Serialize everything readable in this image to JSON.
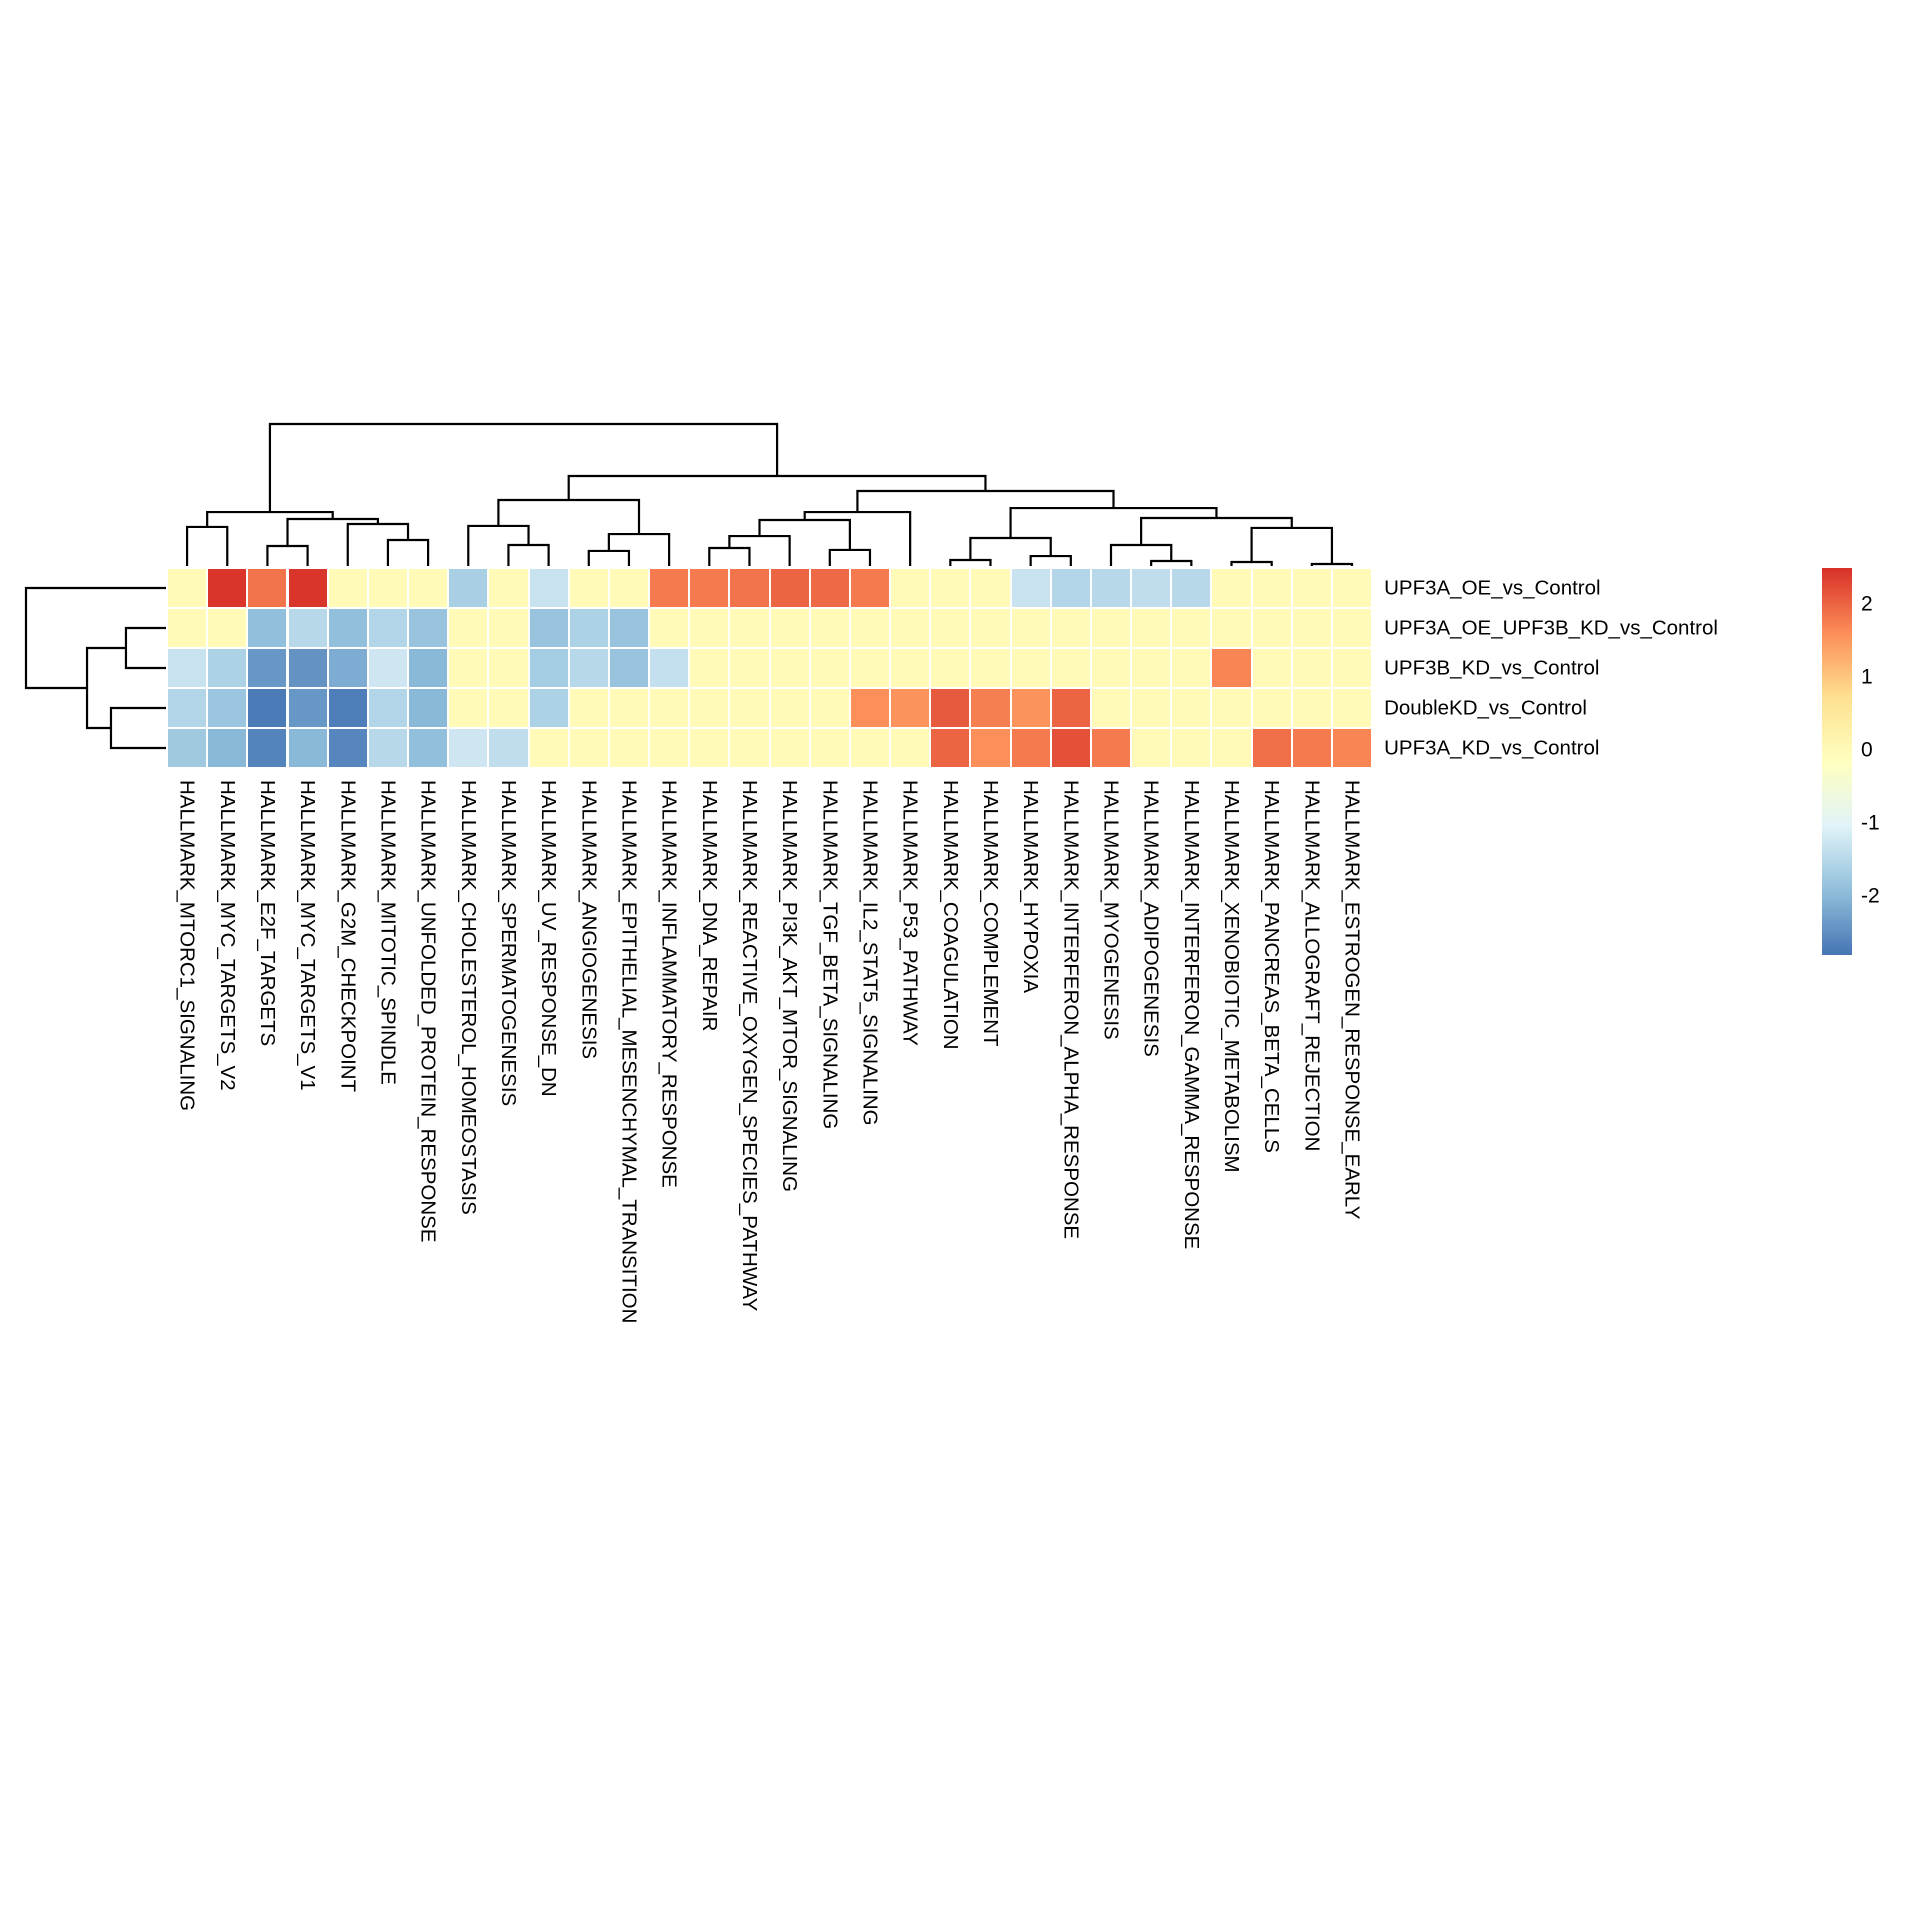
{
  "figure": {
    "background": "#ffffff",
    "description": "Clustered heatmap of GSEA hallmark pathway scores (NES) across UPF3 perturbation comparisons, with row and column dendrograms and a color key"
  },
  "chart_data": {
    "type": "heatmap",
    "title": "",
    "rows": [
      "UPF3A_OE_vs_Control",
      "UPF3A_OE_UPF3B_KD_vs_Control",
      "UPF3B_KD_vs_Control",
      "DoubleKD_vs_Control",
      "UPF3A_KD_vs_Control"
    ],
    "columns": [
      "HALLMARK_MTORC1_SIGNALING",
      "HALLMARK_MYC_TARGETS_V2",
      "HALLMARK_E2F_TARGETS",
      "HALLMARK_MYC_TARGETS_V1",
      "HALLMARK_G2M_CHECKPOINT",
      "HALLMARK_MITOTIC_SPINDLE",
      "HALLMARK_UNFOLDED_PROTEIN_RESPONSE",
      "HALLMARK_CHOLESTEROL_HOMEOSTASIS",
      "HALLMARK_SPERMATOGENESIS",
      "HALLMARK_UV_RESPONSE_DN",
      "HALLMARK_ANGIOGENESIS",
      "HALLMARK_EPITHELIAL_MESENCHYMAL_TRANSITION",
      "HALLMARK_INFLAMMATORY_RESPONSE",
      "HALLMARK_DNA_REPAIR",
      "HALLMARK_REACTIVE_OXYGEN_SPECIES_PATHWAY",
      "HALLMARK_PI3K_AKT_MTOR_SIGNALING",
      "HALLMARK_TGF_BETA_SIGNALING",
      "HALLMARK_IL2_STAT5_SIGNALING",
      "HALLMARK_P53_PATHWAY",
      "HALLMARK_COAGULATION",
      "HALLMARK_COMPLEMENT",
      "HALLMARK_HYPOXIA",
      "HALLMARK_INTERFERON_ALPHA_RESPONSE",
      "HALLMARK_MYOGENESIS",
      "HALLMARK_ADIPOGENESIS",
      "HALLMARK_INTERFERON_GAMMA_RESPONSE",
      "HALLMARK_XENOBIOTIC_METABOLISM",
      "HALLMARK_PANCREAS_BETA_CELLS",
      "HALLMARK_ALLOGRAFT_REJECTION",
      "HALLMARK_ESTROGEN_RESPONSE_EARLY"
    ],
    "values": [
      [
        0,
        2.45,
        1.85,
        2.45,
        0,
        0,
        0,
        -1.65,
        0,
        -1.3,
        0,
        0,
        1.8,
        1.8,
        1.85,
        2.0,
        1.95,
        1.8,
        0,
        0,
        0,
        -1.3,
        -1.55,
        -1.5,
        -1.4,
        -1.5,
        0,
        0,
        0,
        0
      ],
      [
        0,
        0,
        -1.9,
        -1.5,
        -1.9,
        -1.55,
        -1.85,
        0,
        0,
        -1.85,
        -1.6,
        -1.85,
        0,
        0,
        0,
        0,
        0,
        0,
        0,
        0,
        0,
        0,
        0,
        0,
        0,
        0,
        0,
        0,
        0,
        0
      ],
      [
        -1.3,
        -1.6,
        -2.4,
        -2.45,
        -2.15,
        -1.25,
        -2.0,
        0,
        0,
        -1.7,
        -1.5,
        -1.85,
        -1.35,
        0,
        0,
        0,
        0,
        0,
        0,
        0,
        0,
        0,
        0,
        0,
        0,
        0,
        1.7,
        0,
        0,
        0
      ],
      [
        -1.55,
        -1.8,
        -2.73,
        -2.4,
        -2.68,
        -1.55,
        -2.0,
        0,
        0,
        -1.6,
        0,
        0,
        0,
        0,
        0,
        0,
        0,
        1.6,
        1.55,
        2.1,
        1.75,
        1.55,
        2.0,
        0,
        0,
        0,
        0,
        0,
        0,
        0
      ],
      [
        -1.75,
        -2.0,
        -2.62,
        -2.0,
        -2.6,
        -1.5,
        -1.9,
        -1.25,
        -1.4,
        0,
        0,
        0,
        0,
        0,
        0,
        0,
        0,
        0,
        0,
        2.0,
        1.6,
        1.8,
        2.2,
        1.8,
        0,
        0,
        0,
        1.9,
        1.8,
        1.7
      ]
    ],
    "color_scale": {
      "palette_name": "RdYlBu reversed",
      "colors": [
        "#4575b4",
        "#91bfdb",
        "#e0f3f8",
        "#ffffbf",
        "#fee090",
        "#fc8d59",
        "#d73027"
      ],
      "domain": [
        -2.8,
        2.5
      ],
      "legend_ticks": [
        "2",
        "1",
        "0",
        "-1",
        "-2"
      ],
      "legend_tick_values": [
        2,
        1,
        0,
        -1,
        -2
      ],
      "legend_position": "right"
    },
    "grid": {
      "cell_border_color": "#ffffff",
      "show_values": false
    },
    "row_dendrogram": {
      "h": 1.0,
      "children": [
        {
          "leaf": 0
        },
        {
          "h": 0.564,
          "children": [
            {
              "h": 0.286,
              "children": [
                {
                  "leaf": 1
                },
                {
                  "leaf": 2
                }
              ]
            },
            {
              "h": 0.393,
              "children": [
                {
                  "leaf": 3
                },
                {
                  "leaf": 4
                }
              ]
            }
          ]
        }
      ]
    },
    "col_dendrogram": {
      "h": 1.0,
      "children": [
        {
          "h": 0.38,
          "children": [
            {
              "h": 0.275,
              "children": [
                {
                  "leaf": 0
                },
                {
                  "leaf": 1
                }
              ]
            },
            {
              "h": 0.331,
              "children": [
                {
                  "h": 0.141,
                  "children": [
                    {
                      "leaf": 2
                    },
                    {
                      "leaf": 3
                    }
                  ]
                },
                {
                  "h": 0.296,
                  "children": [
                    {
                      "leaf": 4
                    },
                    {
                      "h": 0.183,
                      "children": [
                        {
                          "leaf": 5
                        },
                        {
                          "leaf": 6
                        }
                      ]
                    }
                  ]
                }
              ]
            }
          ]
        },
        {
          "h": 0.634,
          "children": [
            {
              "h": 0.465,
              "children": [
                {
                  "h": 0.282,
                  "children": [
                    {
                      "leaf": 7
                    },
                    {
                      "h": 0.148,
                      "children": [
                        {
                          "leaf": 8
                        },
                        {
                          "leaf": 9
                        }
                      ]
                    }
                  ]
                },
                {
                  "h": 0.225,
                  "children": [
                    {
                      "h": 0.106,
                      "children": [
                        {
                          "leaf": 10
                        },
                        {
                          "leaf": 11
                        }
                      ]
                    },
                    {
                      "leaf": 12
                    }
                  ]
                }
              ]
            },
            {
              "h": 0.528,
              "children": [
                {
                  "h": 0.38,
                  "children": [
                    {
                      "h": 0.324,
                      "children": [
                        {
                          "h": 0.211,
                          "children": [
                            {
                              "h": 0.127,
                              "children": [
                                {
                                  "leaf": 13
                                },
                                {
                                  "leaf": 14
                                }
                              ]
                            },
                            {
                              "leaf": 15
                            }
                          ]
                        },
                        {
                          "h": 0.113,
                          "children": [
                            {
                              "leaf": 16
                            },
                            {
                              "leaf": 17
                            }
                          ]
                        }
                      ]
                    },
                    {
                      "leaf": 18
                    }
                  ]
                },
                {
                  "h": 0.408,
                  "children": [
                    {
                      "h": 0.197,
                      "children": [
                        {
                          "h": 0.042,
                          "children": [
                            {
                              "leaf": 19
                            },
                            {
                              "leaf": 20
                            }
                          ]
                        },
                        {
                          "h": 0.07,
                          "children": [
                            {
                              "leaf": 21
                            },
                            {
                              "leaf": 22
                            }
                          ]
                        }
                      ]
                    },
                    {
                      "h": 0.338,
                      "children": [
                        {
                          "h": 0.148,
                          "children": [
                            {
                              "leaf": 23
                            },
                            {
                              "h": 0.035,
                              "children": [
                                {
                                  "leaf": 24
                                },
                                {
                                  "leaf": 25
                                }
                              ]
                            }
                          ]
                        },
                        {
                          "h": 0.268,
                          "children": [
                            {
                              "h": 0.028,
                              "children": [
                                {
                                  "leaf": 26
                                },
                                {
                                  "leaf": 27
                                }
                              ]
                            },
                            {
                              "h": 0.014,
                              "children": [
                                {
                                  "leaf": 28
                                },
                                {
                                  "leaf": 29
                                }
                              ]
                            }
                          ]
                        }
                      ]
                    }
                  ]
                }
              ]
            }
          ]
        }
      ]
    }
  }
}
